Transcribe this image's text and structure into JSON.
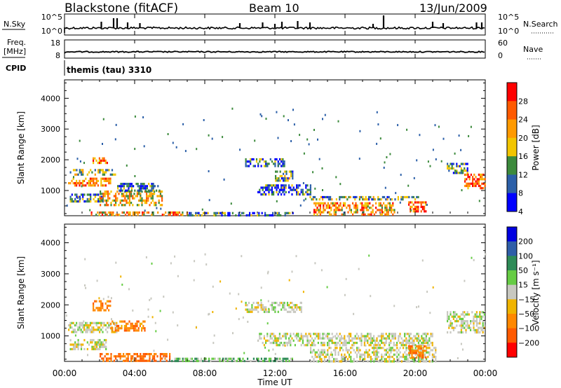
{
  "header": {
    "station": "Blackstone (fitACF)",
    "beam": "Beam 10",
    "date": "13/Jun/2009"
  },
  "nsky": {
    "label": "N.Sky",
    "ticks_left": [
      "10^5",
      "10^0"
    ],
    "ticks_right": [
      "10^5",
      "10^0"
    ],
    "right_label": "N.Search"
  },
  "freq": {
    "label_line1": "Freq.",
    "label_line2": "[MHz]",
    "ticks_left": [
      "18",
      "8"
    ],
    "ticks_right": [
      "60",
      "0"
    ],
    "right_label": "Nave"
  },
  "cpid": {
    "label": "CPID",
    "value": "themis (tau) 3310"
  },
  "power_panel": {
    "ylabel": "Slant Range [km]",
    "cbar_label": "Power [dB]",
    "cbar_ticks": [
      "28",
      "24",
      "20",
      "16",
      "12",
      "8",
      "4"
    ],
    "cbar_colors": [
      "#ff0000",
      "#ff5a00",
      "#ff9a00",
      "#f2c500",
      "#3c8a3c",
      "#2b5fa8",
      "#0000ff"
    ]
  },
  "velocity_panel": {
    "ylabel": "Slant Range [km]",
    "cbar_label": "Velocity [m s⁻¹]",
    "cbar_ticks": [
      "200",
      "100",
      "50",
      "15",
      "−15",
      "−50",
      "−100",
      "−200"
    ],
    "cbar_colors": [
      "#0000e0",
      "#2f5ea8",
      "#2e8b57",
      "#66cc44",
      "#c8c8c0",
      "#f0b400",
      "#ff8800",
      "#ff5a00",
      "#ff0000"
    ]
  },
  "xaxis": {
    "label": "Time UT"
  },
  "chart_data": [
    {
      "type": "line",
      "title": "N.Sky",
      "x": [
        "00:00",
        "02:00",
        "02:40",
        "04:00",
        "12:00",
        "18:00",
        "20:00",
        "00:00"
      ],
      "y": [
        1,
        1,
        10,
        1,
        1,
        100000,
        1,
        1
      ],
      "ylim": [
        "10^0",
        "10^5"
      ]
    },
    {
      "type": "line",
      "title": "Freq.",
      "x": [
        "00:00",
        "24:00"
      ],
      "y": [
        10.4,
        10.4
      ],
      "ylim": [
        8,
        18
      ]
    },
    {
      "type": "heatmap",
      "title": "Power [dB]",
      "xlabel": "Time UT",
      "ylabel": "Slant Range [km]",
      "x_ticks": [
        "00:00",
        "04:00",
        "08:00",
        "12:00",
        "16:00",
        "20:00",
        "00:00"
      ],
      "y_ticks": [
        1000,
        2000,
        3000,
        4000
      ],
      "xlim": [
        0,
        24
      ],
      "ylim": [
        180,
        4600
      ],
      "colorbar": {
        "label": "Power [dB]",
        "ticks": [
          4,
          8,
          12,
          16,
          20,
          24,
          28
        ],
        "range": [
          0,
          30
        ]
      },
      "regions": [
        {
          "t": [
            0.2,
            2.6
          ],
          "r": [
            1200,
            1420
          ],
          "level": 22
        },
        {
          "t": [
            0.3,
            2.9
          ],
          "r": [
            1500,
            1700
          ],
          "level": 14
        },
        {
          "t": [
            1.6,
            2.4
          ],
          "r": [
            1880,
            2080
          ],
          "level": 22
        },
        {
          "t": [
            0.3,
            2.2
          ],
          "r": [
            650,
            900
          ],
          "level": 10
        },
        {
          "t": [
            2.0,
            5.6
          ],
          "r": [
            560,
            1000
          ],
          "level": 18
        },
        {
          "t": [
            3.0,
            5.4
          ],
          "r": [
            1000,
            1250
          ],
          "level": 8
        },
        {
          "t": [
            1.5,
            7.0
          ],
          "r": [
            190,
            320
          ],
          "level": 20
        },
        {
          "t": [
            7.0,
            13.0
          ],
          "r": [
            190,
            300
          ],
          "level": 8
        },
        {
          "t": [
            10.3,
            12.5
          ],
          "r": [
            1800,
            2050
          ],
          "level": 8
        },
        {
          "t": [
            12.0,
            13.0
          ],
          "r": [
            1350,
            1650
          ],
          "level": 12
        },
        {
          "t": [
            11.0,
            14.0
          ],
          "r": [
            900,
            1200
          ],
          "level": 8
        },
        {
          "t": [
            13.8,
            20.2
          ],
          "r": [
            720,
            820
          ],
          "level": 12
        },
        {
          "t": [
            14.2,
            18.8
          ],
          "r": [
            250,
            620
          ],
          "level": 20
        },
        {
          "t": [
            19.6,
            20.6
          ],
          "r": [
            350,
            650
          ],
          "level": 24
        },
        {
          "t": [
            21.8,
            23.0
          ],
          "r": [
            1600,
            1900
          ],
          "level": 10
        },
        {
          "t": [
            22.8,
            24.0
          ],
          "r": [
            1100,
            1550
          ],
          "level": 24
        }
      ]
    },
    {
      "type": "heatmap",
      "title": "Velocity",
      "xlabel": "Time UT",
      "ylabel": "Slant Range [km]",
      "x_ticks": [
        "00:00",
        "04:00",
        "08:00",
        "12:00",
        "16:00",
        "20:00",
        "00:00"
      ],
      "y_ticks": [
        1000,
        2000,
        3000,
        4000
      ],
      "xlim": [
        0,
        24
      ],
      "ylim": [
        180,
        4600
      ],
      "colorbar": {
        "label": "Velocity [m s⁻¹]",
        "ticks": [
          200,
          100,
          50,
          15,
          -15,
          -50,
          -100,
          -200
        ],
        "range": [
          -250,
          250
        ]
      },
      "regions": [
        {
          "t": [
            0.2,
            3.0
          ],
          "r": [
            1150,
            1450
          ],
          "level": 0
        },
        {
          "t": [
            1.6,
            2.6
          ],
          "r": [
            1800,
            2150
          ],
          "level": -60
        },
        {
          "t": [
            2.6,
            4.6
          ],
          "r": [
            1200,
            1500
          ],
          "level": -60
        },
        {
          "t": [
            0.3,
            2.4
          ],
          "r": [
            600,
            900
          ],
          "level": 0
        },
        {
          "t": [
            2.0,
            6.0
          ],
          "r": [
            180,
            450
          ],
          "level": -80
        },
        {
          "t": [
            6.0,
            13.0
          ],
          "r": [
            190,
            300
          ],
          "level": 30
        },
        {
          "t": [
            10.3,
            13.5
          ],
          "r": [
            1800,
            2100
          ],
          "level": 0
        },
        {
          "t": [
            11.0,
            21.0
          ],
          "r": [
            700,
            1100
          ],
          "level": 0
        },
        {
          "t": [
            14.0,
            21.2
          ],
          "r": [
            180,
            650
          ],
          "level": 0
        },
        {
          "t": [
            19.6,
            20.6
          ],
          "r": [
            300,
            700
          ],
          "level": -60
        },
        {
          "t": [
            21.8,
            24.0
          ],
          "r": [
            1100,
            1800
          ],
          "level": 0
        }
      ]
    }
  ]
}
